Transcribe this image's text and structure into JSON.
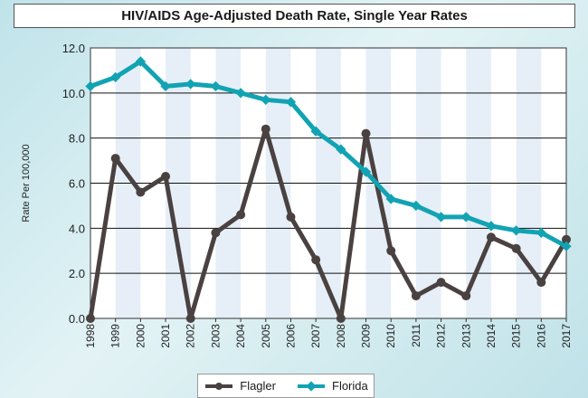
{
  "chart_data": {
    "type": "line",
    "title": "HIV/AIDS Age-Adjusted Death Rate, Single Year Rates",
    "ylabel": "Rate Per 100,000",
    "xlabel": "",
    "ylim": [
      0,
      12
    ],
    "yticks": [
      "0.0",
      "2.0",
      "4.0",
      "6.0",
      "8.0",
      "10.0",
      "12.0"
    ],
    "categories": [
      "1998",
      "1999",
      "2000",
      "2001",
      "2002",
      "2003",
      "2004",
      "2005",
      "2006",
      "2007",
      "2008",
      "2009",
      "2010",
      "2011",
      "2012",
      "2013",
      "2014",
      "2015",
      "2016",
      "2017"
    ],
    "series": [
      {
        "name": "Flagler",
        "color": "#4a4141",
        "values": [
          0.0,
          7.1,
          5.6,
          6.3,
          0.0,
          3.8,
          4.6,
          8.4,
          4.5,
          2.6,
          0.0,
          8.2,
          3.0,
          1.0,
          1.6,
          1.0,
          3.6,
          3.1,
          1.6,
          3.5
        ]
      },
      {
        "name": "Florida",
        "color": "#12a3b3",
        "values": [
          10.3,
          10.7,
          11.4,
          10.3,
          10.4,
          10.3,
          10.0,
          9.7,
          9.6,
          8.3,
          7.5,
          6.5,
          5.3,
          5.0,
          4.5,
          4.5,
          4.1,
          3.9,
          3.8,
          3.2
        ]
      }
    ],
    "legend": [
      "Flagler",
      "Florida"
    ],
    "legend_position": "bottom"
  }
}
